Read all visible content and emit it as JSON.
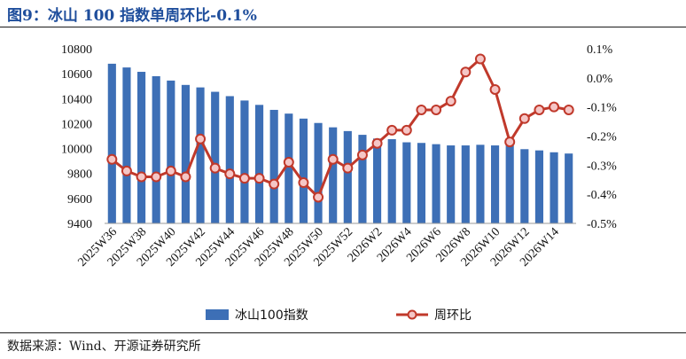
{
  "title": "图9：冰山 100 指数单周环比-0.1%",
  "source": "数据来源：Wind、开源证券研究所",
  "colors": {
    "bar": "#3d6fb6",
    "line": "#c0392b",
    "marker_fill": "#f5c6c6",
    "title": "#1f4e9c"
  },
  "chart_data": {
    "type": "bar+line",
    "categories": [
      "2025W36",
      "2025W37",
      "2025W38",
      "2025W39",
      "2025W40",
      "2025W41",
      "2025W42",
      "2025W43",
      "2025W44",
      "2025W45",
      "2025W46",
      "2025W47",
      "2025W48",
      "2025W49",
      "2025W50",
      "2025W51",
      "2025W52",
      "2026W1",
      "2026W2",
      "2026W3",
      "2026W4",
      "2026W5",
      "2026W6",
      "2026W7",
      "2026W8",
      "2026W9",
      "2026W10",
      "2026W11",
      "2026W12",
      "2026W13",
      "2026W14",
      "2026W15"
    ],
    "tick_labels": [
      "2025W36",
      "2025W38",
      "2025W40",
      "2025W42",
      "2025W44",
      "2025W46",
      "2025W48",
      "2025W50",
      "2025W52",
      "2026W2",
      "2026W4",
      "2026W6",
      "2026W8",
      "2026W10",
      "2026W12",
      "2026W14"
    ],
    "series": [
      {
        "name": "冰山100指数",
        "type": "bar",
        "axis": "left",
        "values": [
          10680,
          10650,
          10615,
          10580,
          10545,
          10510,
          10490,
          10455,
          10420,
          10385,
          10350,
          10310,
          10280,
          10240,
          10205,
          10170,
          10140,
          10110,
          10080,
          10075,
          10050,
          10045,
          10035,
          10025,
          10025,
          10030,
          10025,
          10025,
          9995,
          9985,
          9970,
          9960
        ]
      },
      {
        "name": "周环比",
        "type": "line",
        "axis": "right",
        "values": [
          -0.28,
          -0.32,
          -0.34,
          -0.34,
          -0.32,
          -0.34,
          -0.21,
          -0.31,
          -0.33,
          -0.345,
          -0.345,
          -0.365,
          -0.29,
          -0.36,
          -0.41,
          -0.28,
          -0.31,
          -0.265,
          -0.225,
          -0.18,
          -0.18,
          -0.11,
          -0.11,
          -0.08,
          0.02,
          0.065,
          -0.04,
          -0.22,
          -0.14,
          -0.11,
          -0.1,
          -0.11
        ]
      }
    ],
    "y_left": {
      "min": 9400,
      "max": 10800,
      "ticks": [
        9400,
        9600,
        9800,
        10000,
        10200,
        10400,
        10600,
        10800
      ]
    },
    "y_right": {
      "min": -0.5,
      "max": 0.1,
      "ticks": [
        -0.5,
        -0.4,
        -0.3,
        -0.2,
        -0.1,
        0.0,
        0.1
      ],
      "tick_labels": [
        "-0.5%",
        "-0.4%",
        "-0.3%",
        "-0.2%",
        "-0.1%",
        "0.0%",
        "0.1%"
      ]
    },
    "legend_position": "bottom-center",
    "grid": false
  }
}
